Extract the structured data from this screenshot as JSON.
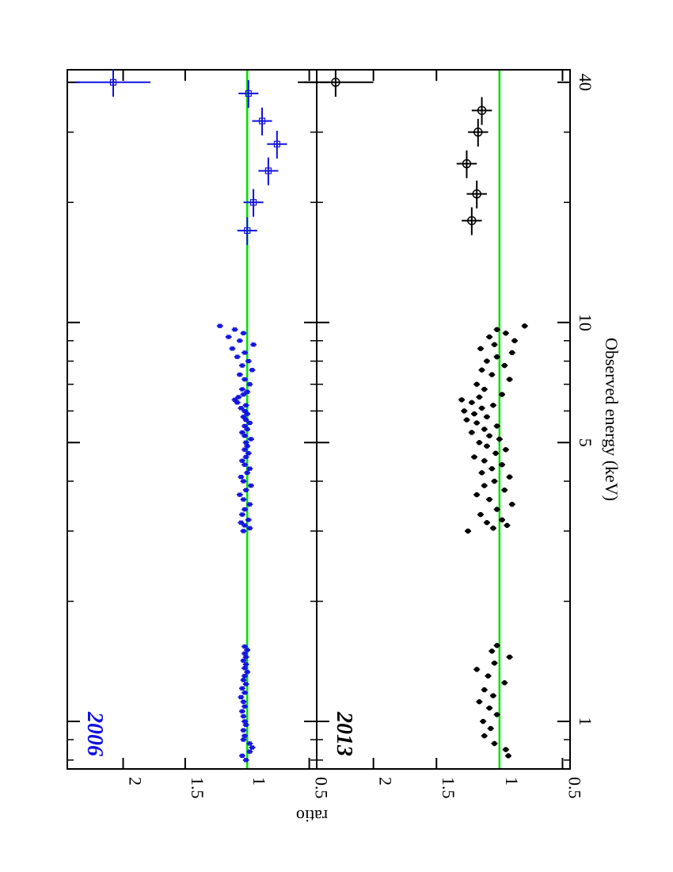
{
  "chart_data": [
    {
      "type": "scatter",
      "panel_label": "2006",
      "label_color": "#1010e0",
      "marker": "square",
      "series": [
        {
          "color": "#1010e0",
          "points": [
            {
              "e": 0.8,
              "r": 1.01
            },
            {
              "e": 0.82,
              "r": 1.04
            },
            {
              "e": 0.84,
              "r": 0.98
            },
            {
              "e": 0.86,
              "r": 0.96
            },
            {
              "e": 0.88,
              "r": 0.98
            },
            {
              "e": 0.9,
              "r": 1.03
            },
            {
              "e": 0.92,
              "r": 1.02
            },
            {
              "e": 0.95,
              "r": 1.03
            },
            {
              "e": 0.98,
              "r": 1.01
            },
            {
              "e": 1.0,
              "r": 1.02
            },
            {
              "e": 1.03,
              "r": 1.03
            },
            {
              "e": 1.06,
              "r": 1.04
            },
            {
              "e": 1.09,
              "r": 1.02
            },
            {
              "e": 1.12,
              "r": 1.03
            },
            {
              "e": 1.15,
              "r": 1.05
            },
            {
              "e": 1.18,
              "r": 1.02
            },
            {
              "e": 1.21,
              "r": 1.04
            },
            {
              "e": 1.24,
              "r": 1.01
            },
            {
              "e": 1.27,
              "r": 1.03
            },
            {
              "e": 1.3,
              "r": 1.02
            },
            {
              "e": 1.33,
              "r": 1.0
            },
            {
              "e": 1.36,
              "r": 1.02
            },
            {
              "e": 1.39,
              "r": 1.01
            },
            {
              "e": 1.42,
              "r": 1.03
            },
            {
              "e": 1.45,
              "r": 1.01
            },
            {
              "e": 1.48,
              "r": 1.02
            },
            {
              "e": 1.51,
              "r": 1.0
            },
            {
              "e": 1.54,
              "r": 1.02
            },
            {
              "e": 3.0,
              "r": 1.03
            },
            {
              "e": 3.05,
              "r": 0.98
            },
            {
              "e": 3.1,
              "r": 1.02
            },
            {
              "e": 3.15,
              "r": 1.05
            },
            {
              "e": 3.2,
              "r": 0.99
            },
            {
              "e": 3.3,
              "r": 1.04
            },
            {
              "e": 3.4,
              "r": 1.02
            },
            {
              "e": 3.5,
              "r": 0.98
            },
            {
              "e": 3.6,
              "r": 1.03
            },
            {
              "e": 3.7,
              "r": 1.06
            },
            {
              "e": 3.8,
              "r": 1.01
            },
            {
              "e": 3.9,
              "r": 0.97
            },
            {
              "e": 4.0,
              "r": 1.03
            },
            {
              "e": 4.1,
              "r": 1.05
            },
            {
              "e": 4.2,
              "r": 1.0
            },
            {
              "e": 4.3,
              "r": 0.98
            },
            {
              "e": 4.4,
              "r": 1.02
            },
            {
              "e": 4.5,
              "r": 1.04
            },
            {
              "e": 4.6,
              "r": 1.01
            },
            {
              "e": 4.7,
              "r": 0.99
            },
            {
              "e": 4.8,
              "r": 1.02
            },
            {
              "e": 4.9,
              "r": 1.0
            },
            {
              "e": 5.0,
              "r": 1.01
            },
            {
              "e": 5.1,
              "r": 0.97
            },
            {
              "e": 5.2,
              "r": 1.02
            },
            {
              "e": 5.3,
              "r": 1.04
            },
            {
              "e": 5.4,
              "r": 1.0
            },
            {
              "e": 5.5,
              "r": 1.02
            },
            {
              "e": 5.6,
              "r": 0.98
            },
            {
              "e": 5.7,
              "r": 1.01
            },
            {
              "e": 5.8,
              "r": 1.03
            },
            {
              "e": 5.9,
              "r": 1.0
            },
            {
              "e": 6.0,
              "r": 1.02
            },
            {
              "e": 6.1,
              "r": 1.05
            },
            {
              "e": 6.2,
              "r": 1.01
            },
            {
              "e": 6.3,
              "r": 1.08
            },
            {
              "e": 6.4,
              "r": 1.1
            },
            {
              "e": 6.5,
              "r": 1.07
            },
            {
              "e": 6.6,
              "r": 1.03
            },
            {
              "e": 6.7,
              "r": 1.0
            },
            {
              "e": 6.8,
              "r": 1.04
            },
            {
              "e": 7.0,
              "r": 0.98
            },
            {
              "e": 7.2,
              "r": 1.02
            },
            {
              "e": 7.4,
              "r": 1.06
            },
            {
              "e": 7.6,
              "r": 0.96
            },
            {
              "e": 7.8,
              "r": 1.04
            },
            {
              "e": 8.0,
              "r": 0.99
            },
            {
              "e": 8.2,
              "r": 1.08
            },
            {
              "e": 8.4,
              "r": 1.02
            },
            {
              "e": 8.6,
              "r": 1.12
            },
            {
              "e": 8.8,
              "r": 0.95
            },
            {
              "e": 9.0,
              "r": 1.06
            },
            {
              "e": 9.2,
              "r": 1.15
            },
            {
              "e": 9.4,
              "r": 1.03
            },
            {
              "e": 9.6,
              "r": 1.1
            },
            {
              "e": 9.8,
              "r": 1.22
            },
            {
              "e": 17.0,
              "r": 1.0
            },
            {
              "e": 20.0,
              "r": 0.95
            },
            {
              "e": 24.0,
              "r": 0.83
            },
            {
              "e": 28.0,
              "r": 0.76
            },
            {
              "e": 32.0,
              "r": 0.88
            },
            {
              "e": 37.5,
              "r": 0.99
            },
            {
              "e": 40.0,
              "r": 2.08
            }
          ]
        }
      ]
    },
    {
      "type": "scatter",
      "panel_label": "2013",
      "label_color": "#000000",
      "marker": "circle",
      "series": [
        {
          "color": "#000000",
          "points": [
            {
              "e": 0.82,
              "r": 0.93
            },
            {
              "e": 0.85,
              "r": 0.95
            },
            {
              "e": 0.88,
              "r": 1.04
            },
            {
              "e": 0.92,
              "r": 1.12
            },
            {
              "e": 0.96,
              "r": 1.07
            },
            {
              "e": 1.0,
              "r": 1.13
            },
            {
              "e": 1.04,
              "r": 1.02
            },
            {
              "e": 1.08,
              "r": 1.08
            },
            {
              "e": 1.12,
              "r": 1.16
            },
            {
              "e": 1.16,
              "r": 1.05
            },
            {
              "e": 1.2,
              "r": 1.12
            },
            {
              "e": 1.25,
              "r": 0.96
            },
            {
              "e": 1.3,
              "r": 1.09
            },
            {
              "e": 1.35,
              "r": 1.18
            },
            {
              "e": 1.4,
              "r": 1.04
            },
            {
              "e": 1.45,
              "r": 0.92
            },
            {
              "e": 1.5,
              "r": 1.06
            },
            {
              "e": 1.55,
              "r": 1.02
            },
            {
              "e": 3.0,
              "r": 1.25
            },
            {
              "e": 3.05,
              "r": 1.05
            },
            {
              "e": 3.1,
              "r": 0.94
            },
            {
              "e": 3.15,
              "r": 1.1
            },
            {
              "e": 3.2,
              "r": 0.98
            },
            {
              "e": 3.3,
              "r": 1.15
            },
            {
              "e": 3.4,
              "r": 1.02
            },
            {
              "e": 3.5,
              "r": 0.9
            },
            {
              "e": 3.6,
              "r": 1.08
            },
            {
              "e": 3.7,
              "r": 1.18
            },
            {
              "e": 3.8,
              "r": 0.96
            },
            {
              "e": 3.9,
              "r": 1.12
            },
            {
              "e": 4.0,
              "r": 1.04
            },
            {
              "e": 4.1,
              "r": 0.92
            },
            {
              "e": 4.2,
              "r": 1.14
            },
            {
              "e": 4.3,
              "r": 1.06
            },
            {
              "e": 4.4,
              "r": 0.98
            },
            {
              "e": 4.5,
              "r": 1.12
            },
            {
              "e": 4.6,
              "r": 1.2
            },
            {
              "e": 4.7,
              "r": 1.03
            },
            {
              "e": 4.8,
              "r": 0.95
            },
            {
              "e": 4.9,
              "r": 1.1
            },
            {
              "e": 5.0,
              "r": 1.16
            },
            {
              "e": 5.1,
              "r": 1.0
            },
            {
              "e": 5.2,
              "r": 1.08
            },
            {
              "e": 5.3,
              "r": 1.22
            },
            {
              "e": 5.4,
              "r": 1.12
            },
            {
              "e": 5.5,
              "r": 1.02
            },
            {
              "e": 5.6,
              "r": 1.18
            },
            {
              "e": 5.7,
              "r": 1.26
            },
            {
              "e": 5.8,
              "r": 1.1
            },
            {
              "e": 5.9,
              "r": 1.2
            },
            {
              "e": 6.0,
              "r": 1.28
            },
            {
              "e": 6.1,
              "r": 1.14
            },
            {
              "e": 6.2,
              "r": 1.05
            },
            {
              "e": 6.3,
              "r": 1.22
            },
            {
              "e": 6.4,
              "r": 1.3
            },
            {
              "e": 6.5,
              "r": 1.16
            },
            {
              "e": 6.6,
              "r": 0.98
            },
            {
              "e": 6.8,
              "r": 1.12
            },
            {
              "e": 7.0,
              "r": 1.18
            },
            {
              "e": 7.2,
              "r": 0.92
            },
            {
              "e": 7.4,
              "r": 1.06
            },
            {
              "e": 7.6,
              "r": 1.14
            },
            {
              "e": 7.8,
              "r": 0.96
            },
            {
              "e": 8.0,
              "r": 1.1
            },
            {
              "e": 8.2,
              "r": 1.02
            },
            {
              "e": 8.4,
              "r": 0.9
            },
            {
              "e": 8.6,
              "r": 1.15
            },
            {
              "e": 8.8,
              "r": 1.04
            },
            {
              "e": 9.0,
              "r": 0.88
            },
            {
              "e": 9.2,
              "r": 1.08
            },
            {
              "e": 9.4,
              "r": 0.95
            },
            {
              "e": 9.6,
              "r": 1.02
            },
            {
              "e": 9.8,
              "r": 0.8
            },
            {
              "e": 18.0,
              "r": 1.22
            },
            {
              "e": 21.0,
              "r": 1.18
            },
            {
              "e": 25.0,
              "r": 1.26
            },
            {
              "e": 30.0,
              "r": 1.17
            },
            {
              "e": 34.0,
              "r": 1.14
            },
            {
              "e": 40.0,
              "r": 2.3
            }
          ]
        }
      ]
    }
  ],
  "axes": {
    "xlabel": "Observed energy (keV)",
    "ylabel": "ratio",
    "x_scale": "log",
    "xlim": [
      0.76,
      43
    ],
    "x_tick_labels": [
      "1",
      "5",
      "10",
      "40"
    ],
    "ylim": [
      0.44,
      2.45
    ],
    "y_tick_labels": [
      "0.5",
      "1",
      "1.5",
      "2"
    ]
  },
  "model_line": {
    "value": 1.0,
    "color": "#00e000"
  },
  "orientation": "rotated 90° (x axis vertical, increasing upward)"
}
